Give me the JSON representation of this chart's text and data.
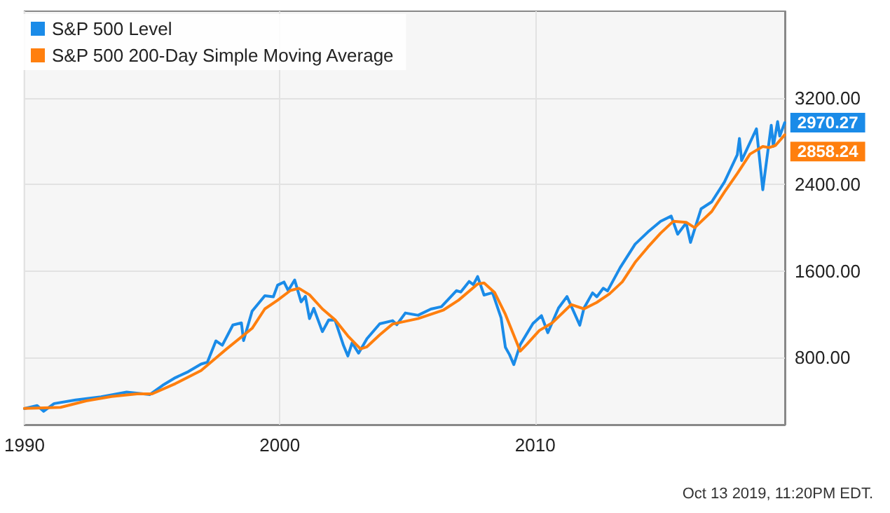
{
  "chart_data": {
    "type": "line",
    "annotations": [
      "Oct 13 2019, 11:20PM EDT."
    ],
    "legend": "top left",
    "grid": true,
    "marker": "none",
    "line_style": "solid",
    "xlim": [
      "1990-01",
      "2019-10-13"
    ],
    "xticks": [
      {
        "value": "1990",
        "label": "1990"
      },
      {
        "value": "2000",
        "label": "2000"
      },
      {
        "value": "2010",
        "label": "2010"
      }
    ],
    "ylim": [
      180,
      4000
    ],
    "yticks": [
      {
        "value": 800,
        "label": "800.00"
      },
      {
        "value": 1600,
        "label": "1600.00"
      },
      {
        "value": 2400,
        "label": "2400.00"
      },
      {
        "value": 3200,
        "label": "3200.00"
      }
    ],
    "series": [
      {
        "name": "S&P 500 Level",
        "color": "#1a8be8",
        "x": [
          "1990-01",
          "1990-07",
          "1990-10",
          "1991-03",
          "1992-01",
          "1993-01",
          "1994-01",
          "1994-12",
          "1995-06",
          "1995-12",
          "1996-06",
          "1996-12",
          "1997-03",
          "1997-07",
          "1997-10",
          "1998-03",
          "1998-07",
          "1998-08",
          "1998-12",
          "1999-06",
          "1999-10",
          "1999-12",
          "2000-03",
          "2000-05",
          "2000-08",
          "2000-11",
          "2001-01",
          "2001-03",
          "2001-05",
          "2001-09",
          "2001-12",
          "2002-03",
          "2002-07",
          "2002-09",
          "2002-11",
          "2003-02",
          "2003-06",
          "2003-12",
          "2004-06",
          "2004-08",
          "2004-12",
          "2005-06",
          "2005-12",
          "2006-05",
          "2006-12",
          "2007-02",
          "2007-06",
          "2007-08",
          "2007-10",
          "2008-01",
          "2008-05",
          "2008-09",
          "2008-11",
          "2009-01",
          "2009-03",
          "2009-06",
          "2009-12",
          "2010-04",
          "2010-07",
          "2010-12",
          "2011-04",
          "2011-10",
          "2011-12",
          "2012-04",
          "2012-06",
          "2012-09",
          "2012-11",
          "2013-05",
          "2013-12",
          "2014-06",
          "2014-12",
          "2015-05",
          "2015-08",
          "2015-12",
          "2016-02",
          "2016-07",
          "2016-12",
          "2017-06",
          "2017-12",
          "2018-01",
          "2018-02",
          "2018-09",
          "2018-12",
          "2019-04",
          "2019-05",
          "2019-07",
          "2019-08",
          "2019-10-11"
        ],
        "values": [
          329,
          356,
          304,
          375,
          408,
          438,
          481,
          459,
          544,
          615,
          670,
          740,
          757,
          954,
          914,
          1101,
          1120,
          957,
          1229,
          1372,
          1362,
          1469,
          1498,
          1420,
          1517,
          1315,
          1366,
          1160,
          1255,
          1040,
          1148,
          1147,
          911,
          815,
          936,
          841,
          975,
          1112,
          1141,
          1104,
          1212,
          1191,
          1248,
          1270,
          1418,
          1406,
          1503,
          1474,
          1549,
          1378,
          1400,
          1166,
          896,
          825,
          735,
          919,
          1115,
          1187,
          1030,
          1258,
          1364,
          1099,
          1258,
          1398,
          1362,
          1441,
          1416,
          1631,
          1848,
          1960,
          2059,
          2107,
          1940,
          2044,
          1864,
          2174,
          2239,
          2423,
          2674,
          2824,
          2620,
          2914,
          2351,
          2946,
          2752,
          2980,
          2847,
          2970.27
        ],
        "value_labels": [
          null,
          null,
          null,
          null,
          null,
          null,
          null,
          null,
          null,
          null,
          null,
          null,
          null,
          null,
          null,
          null,
          null,
          null,
          null,
          null,
          null,
          null,
          null,
          null,
          null,
          null,
          null,
          null,
          null,
          null,
          null,
          null,
          null,
          null,
          null,
          null,
          null,
          null,
          null,
          null,
          null,
          null,
          null,
          null,
          null,
          null,
          null,
          null,
          null,
          null,
          null,
          null,
          null,
          null,
          null,
          null,
          null,
          null,
          null,
          null,
          null,
          null,
          null,
          null,
          null,
          null,
          null,
          null,
          null,
          null,
          null,
          null,
          null,
          null,
          null,
          null,
          null,
          null,
          null,
          null,
          null,
          null,
          null,
          null,
          null,
          null,
          null,
          "2970.27"
        ]
      },
      {
        "name": "S&P 500 200-Day Simple Moving Average",
        "color": "#ff7f0e",
        "x": [
          "1990-01",
          "1990-10",
          "1991-06",
          "1992-06",
          "1993-06",
          "1994-06",
          "1995-01",
          "1995-12",
          "1996-12",
          "1997-12",
          "1998-12",
          "1999-06",
          "1999-12",
          "2000-06",
          "2000-10",
          "2001-03",
          "2001-09",
          "2002-03",
          "2002-09",
          "2003-03",
          "2003-06",
          "2003-12",
          "2004-06",
          "2005-06",
          "2006-06",
          "2007-01",
          "2007-10",
          "2008-01",
          "2008-06",
          "2008-11",
          "2009-06",
          "2009-09",
          "2010-03",
          "2010-09",
          "2011-06",
          "2011-12",
          "2012-06",
          "2012-12",
          "2013-06",
          "2013-12",
          "2014-06",
          "2014-12",
          "2015-06",
          "2015-12",
          "2016-04",
          "2016-12",
          "2017-06",
          "2017-12",
          "2018-06",
          "2018-12",
          "2019-03",
          "2019-06",
          "2019-10-11"
        ],
        "values": [
          330,
          335,
          340,
          400,
          440,
          465,
          465,
          560,
          680,
          880,
          1070,
          1250,
          1330,
          1420,
          1440,
          1380,
          1250,
          1150,
          1000,
          880,
          900,
          1010,
          1110,
          1160,
          1240,
          1330,
          1480,
          1490,
          1400,
          1200,
          860,
          920,
          1050,
          1120,
          1290,
          1250,
          1310,
          1390,
          1500,
          1680,
          1820,
          1950,
          2060,
          2050,
          2000,
          2150,
          2330,
          2500,
          2680,
          2750,
          2740,
          2760,
          2858.24
        ],
        "value_labels": [
          null,
          null,
          null,
          null,
          null,
          null,
          null,
          null,
          null,
          null,
          null,
          null,
          null,
          null,
          null,
          null,
          null,
          null,
          null,
          null,
          null,
          null,
          null,
          null,
          null,
          null,
          null,
          null,
          null,
          null,
          null,
          null,
          null,
          null,
          null,
          null,
          null,
          null,
          null,
          null,
          null,
          null,
          null,
          null,
          null,
          null,
          null,
          null,
          null,
          null,
          null,
          null,
          "2858.24"
        ]
      }
    ]
  }
}
